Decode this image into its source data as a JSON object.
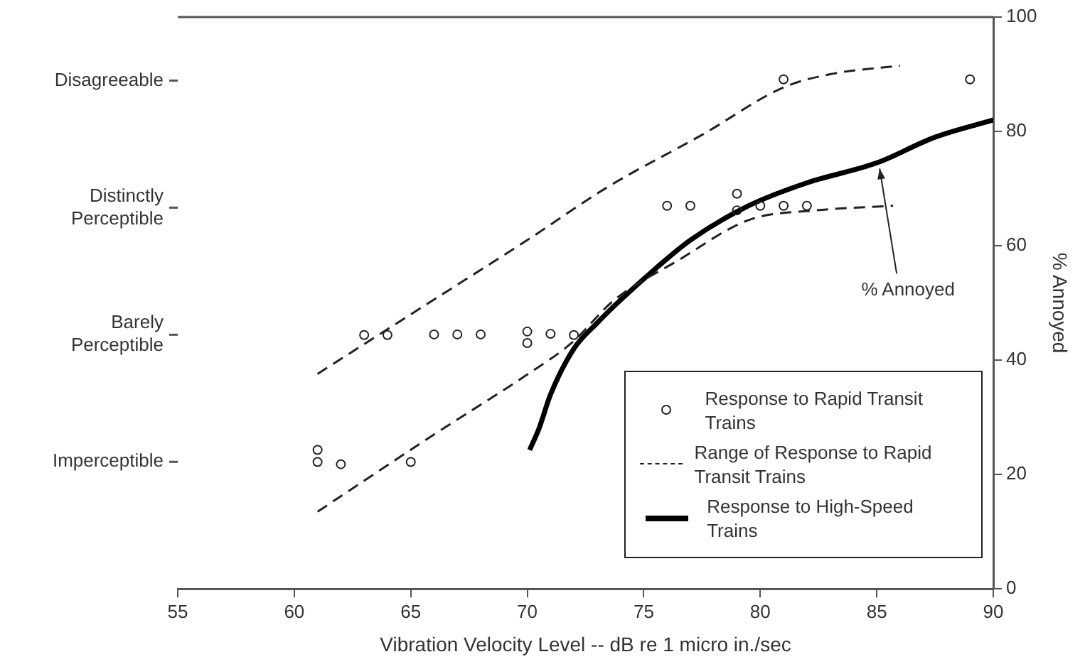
{
  "chart_data": {
    "type": "scatter",
    "xlabel": "Vibration Velocity Level -- dB re 1 micro in./sec",
    "xlim": [
      55,
      90
    ],
    "xticks": [
      55,
      60,
      65,
      70,
      75,
      80,
      85,
      90
    ],
    "ylim": [
      0,
      100
    ],
    "yticks": [
      0,
      20,
      40,
      60,
      80,
      100
    ],
    "ylabel": "% Annoyed",
    "grid": false,
    "legend": "bottom right",
    "annotations": [
      {
        "text": "% Annoyed",
        "x": 85,
        "y": 74.5
      },
      "Imperceptible",
      "Barely Perceptible",
      "Distinctly Perceptible",
      "Disagreeable"
    ],
    "series": [
      {
        "name": "Response to Rapid Transit Trains",
        "type": "scatter",
        "marker": "circle",
        "color": "#222222",
        "x": [
          61,
          61,
          62,
          65,
          63,
          64,
          66,
          67,
          68,
          70,
          70,
          71,
          72,
          76,
          77,
          79,
          79,
          80,
          81,
          82,
          81,
          89
        ],
        "values": [
          24.3,
          22.2,
          21.8,
          22.2,
          44.4,
          44.4,
          44.5,
          44.5,
          44.5,
          45,
          43,
          44.6,
          44.4,
          67,
          67,
          69.1,
          66.2,
          67,
          67,
          67,
          89.1,
          89.1
        ]
      },
      {
        "name": "Range of Response to Rapid Transit Trains",
        "type": "line",
        "line_style": "dashed",
        "marker": "none",
        "color": "#222222",
        "x": [
          61,
          66,
          70,
          73.5,
          77.5,
          81,
          83,
          86
        ],
        "values": [
          37.6,
          50.6,
          61,
          70.4,
          79.4,
          87.7,
          90,
          91.5
        ]
      },
      {
        "type": "line",
        "line_style": "dashed",
        "marker": "none",
        "color": "#222222",
        "x": [
          61,
          66,
          70,
          71.9,
          73.7,
          76.5,
          79.5,
          82.4,
          85.7
        ],
        "values": [
          13.5,
          27,
          37.5,
          43,
          50.4,
          57.5,
          64.5,
          66.2,
          67
        ]
      },
      {
        "name": "Response to High-Speed Trains",
        "type": "line",
        "line_style": "solid",
        "marker": "none",
        "color": "#000000",
        "x": [
          70.1,
          70.5,
          71,
          72,
          73,
          74,
          75.5,
          77,
          79.5,
          82,
          85,
          87.5,
          90
        ],
        "values": [
          24.3,
          28,
          34,
          42,
          46.5,
          50.5,
          56,
          61,
          67,
          71,
          74.5,
          79,
          82
        ]
      }
    ]
  }
}
